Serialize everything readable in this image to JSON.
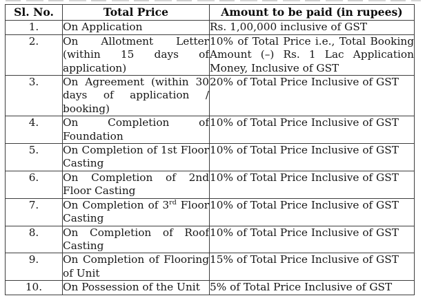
{
  "table": {
    "headers": [
      "Sl. No.",
      "Total Price",
      "Amount to be paid (in rupees)"
    ],
    "rows": [
      {
        "sl": "1.",
        "stage": [
          {
            "t": "On Application"
          }
        ],
        "amount": "Rs. 1,00,000 inclusive of GST"
      },
      {
        "sl": "2.",
        "stage": [
          {
            "t": "On Allotment Letter (within 15 days of application)"
          }
        ],
        "amount": "10% of Total Price i.e., Total Booking Amount (–) Rs. 1 Lac Application Money, Inclusive of GST"
      },
      {
        "sl": "3.",
        "stage": [
          {
            "t": "On Agreement (within 30 days of application / booking)"
          }
        ],
        "amount": "20% of Total Price Inclusive of GST"
      },
      {
        "sl": "4.",
        "stage": [
          {
            "t": "On Completion of Foundation"
          }
        ],
        "amount": "10% of Total Price Inclusive of GST"
      },
      {
        "sl": "5.",
        "stage": [
          {
            "t": "On Completion of 1st Floor Casting"
          }
        ],
        "amount": "10% of Total Price Inclusive of GST"
      },
      {
        "sl": "6.",
        "stage": [
          {
            "t": "On Completion of 2nd Floor Casting"
          }
        ],
        "amount": "10% of Total Price Inclusive of GST"
      },
      {
        "sl": "7.",
        "stage": [
          {
            "t": "On Completion of 3"
          },
          {
            "t": "rd",
            "sup": true
          },
          {
            "t": " Floor Casting"
          }
        ],
        "amount": "10% of Total Price Inclusive of GST"
      },
      {
        "sl": "8.",
        "stage": [
          {
            "t": "On Completion of Roof Casting"
          }
        ],
        "amount": "10% of Total Price Inclusive of GST"
      },
      {
        "sl": "9.",
        "stage": [
          {
            "t": "On Completion of Flooring of Unit"
          }
        ],
        "amount": "15% of Total Price Inclusive of GST"
      },
      {
        "sl": "10.",
        "stage": [
          {
            "t": "On Possession of the Unit"
          }
        ],
        "amount": "5% of Total Price Inclusive of GST"
      }
    ]
  },
  "colors": {
    "border": "#3d3d3d",
    "text": "#161616",
    "background": "#ffffff"
  }
}
